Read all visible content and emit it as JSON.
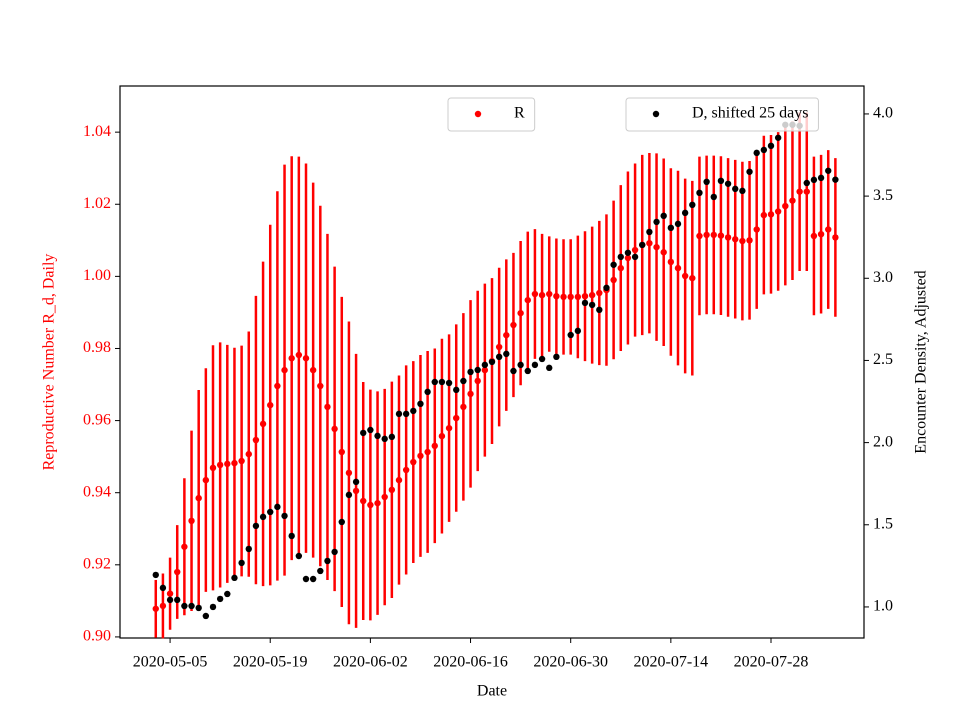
{
  "chart_data": {
    "type": "scatter",
    "x_label": "Date",
    "y_label": "Reproductive Number R_d, Daily",
    "y2_label": "Encounter Density, Adjusted",
    "x": [
      "2020-05-03",
      "2020-05-04",
      "2020-05-05",
      "2020-05-06",
      "2020-05-07",
      "2020-05-08",
      "2020-05-09",
      "2020-05-10",
      "2020-05-11",
      "2020-05-12",
      "2020-05-13",
      "2020-05-14",
      "2020-05-15",
      "2020-05-16",
      "2020-05-17",
      "2020-05-18",
      "2020-05-19",
      "2020-05-20",
      "2020-05-21",
      "2020-05-22",
      "2020-05-23",
      "2020-05-24",
      "2020-05-25",
      "2020-05-26",
      "2020-05-27",
      "2020-05-28",
      "2020-05-29",
      "2020-05-30",
      "2020-05-31",
      "2020-06-01",
      "2020-06-02",
      "2020-06-03",
      "2020-06-04",
      "2020-06-05",
      "2020-06-06",
      "2020-06-07",
      "2020-06-08",
      "2020-06-09",
      "2020-06-10",
      "2020-06-11",
      "2020-06-12",
      "2020-06-13",
      "2020-06-14",
      "2020-06-15",
      "2020-06-16",
      "2020-06-17",
      "2020-06-18",
      "2020-06-19",
      "2020-06-20",
      "2020-06-21",
      "2020-06-22",
      "2020-06-23",
      "2020-06-24",
      "2020-06-25",
      "2020-06-26",
      "2020-06-27",
      "2020-06-28",
      "2020-06-29",
      "2020-06-30",
      "2020-07-01",
      "2020-07-02",
      "2020-07-03",
      "2020-07-04",
      "2020-07-05",
      "2020-07-06",
      "2020-07-07",
      "2020-07-08",
      "2020-07-09",
      "2020-07-10",
      "2020-07-11",
      "2020-07-12",
      "2020-07-13",
      "2020-07-14",
      "2020-07-15",
      "2020-07-16",
      "2020-07-17",
      "2020-07-18",
      "2020-07-19",
      "2020-07-20",
      "2020-07-21",
      "2020-07-22",
      "2020-07-23",
      "2020-07-24",
      "2020-07-25",
      "2020-07-26",
      "2020-07-27",
      "2020-07-28",
      "2020-07-29",
      "2020-07-30",
      "2020-07-31",
      "2020-08-01",
      "2020-08-02",
      "2020-08-03",
      "2020-08-04",
      "2020-08-05",
      "2020-08-06"
    ],
    "series": [
      {
        "name": "R",
        "color": "#ff0000",
        "axis": "y",
        "legend": "upper center",
        "values": [
          0.9078,
          0.9086,
          0.912,
          0.918,
          0.925,
          0.9322,
          0.9385,
          0.9435,
          0.9469,
          0.9477,
          0.948,
          0.9482,
          0.9488,
          0.9507,
          0.9546,
          0.9591,
          0.9643,
          0.9696,
          0.974,
          0.9773,
          0.9782,
          0.9773,
          0.974,
          0.9696,
          0.9638,
          0.9577,
          0.9513,
          0.9455,
          0.9405,
          0.9377,
          0.9366,
          0.9371,
          0.9388,
          0.9408,
          0.9435,
          0.9463,
          0.9485,
          0.9502,
          0.9513,
          0.953,
          0.9557,
          0.9579,
          0.9607,
          0.9638,
          0.9674,
          0.971,
          0.974,
          0.9765,
          0.9804,
          0.9837,
          0.9865,
          0.9898,
          0.9934,
          0.9951,
          0.9948,
          0.9951,
          0.9945,
          0.9943,
          0.9943,
          0.9943,
          0.9945,
          0.9948,
          0.9954,
          0.9962,
          0.999,
          1.0023,
          1.0051,
          1.0073,
          1.0087,
          1.0092,
          1.0081,
          1.0067,
          1.004,
          1.0023,
          1.0001,
          0.9995,
          1.0112,
          1.0115,
          1.0115,
          1.0113,
          1.0108,
          1.0103,
          1.0098,
          1.01,
          1.013,
          1.017,
          1.0172,
          1.018,
          1.0195,
          1.021,
          1.0235,
          1.0235,
          1.0112,
          1.0117,
          1.013,
          1.0108
        ],
        "errors": [
          0.008,
          0.009,
          0.01,
          0.013,
          0.019,
          0.025,
          0.03,
          0.031,
          0.034,
          0.034,
          0.033,
          0.032,
          0.032,
          0.034,
          0.04,
          0.045,
          0.05,
          0.054,
          0.057,
          0.056,
          0.055,
          0.054,
          0.052,
          0.05,
          0.048,
          0.045,
          0.043,
          0.042,
          0.038,
          0.033,
          0.032,
          0.031,
          0.03,
          0.03,
          0.029,
          0.029,
          0.028,
          0.028,
          0.028,
          0.027,
          0.027,
          0.026,
          0.026,
          0.026,
          0.026,
          0.025,
          0.024,
          0.023,
          0.022,
          0.021,
          0.02,
          0.02,
          0.019,
          0.018,
          0.017,
          0.016,
          0.016,
          0.016,
          0.016,
          0.017,
          0.018,
          0.019,
          0.02,
          0.021,
          0.022,
          0.023,
          0.024,
          0.024,
          0.025,
          0.025,
          0.026,
          0.026,
          0.026,
          0.027,
          0.027,
          0.027,
          0.022,
          0.022,
          0.022,
          0.022,
          0.022,
          0.022,
          0.022,
          0.022,
          0.022,
          0.022,
          0.022,
          0.022,
          0.022,
          0.022,
          0.022,
          0.022,
          0.022,
          0.022,
          0.022,
          0.022
        ]
      },
      {
        "name": "D, shifted 25 days",
        "color": "#000000",
        "axis": "y2",
        "legend": "upper right",
        "values": [
          1.195,
          1.116,
          1.043,
          1.043,
          1.006,
          1.006,
          0.994,
          0.945,
          1.0,
          1.049,
          1.079,
          1.177,
          1.268,
          1.353,
          1.493,
          1.548,
          1.578,
          1.609,
          1.554,
          1.432,
          1.31,
          1.17,
          1.17,
          1.219,
          1.28,
          1.335,
          1.517,
          1.682,
          1.761,
          2.059,
          2.077,
          2.041,
          2.023,
          2.035,
          2.175,
          2.175,
          2.193,
          2.236,
          2.309,
          2.369,
          2.369,
          2.363,
          2.321,
          2.375,
          2.43,
          2.442,
          2.473,
          2.491,
          2.522,
          2.54,
          2.436,
          2.473,
          2.436,
          2.473,
          2.509,
          2.455,
          2.522,
          null,
          2.655,
          2.68,
          2.85,
          2.838,
          2.808,
          2.942,
          3.082,
          3.13,
          3.155,
          3.13,
          3.203,
          3.282,
          3.343,
          3.38,
          3.307,
          3.331,
          3.398,
          3.447,
          3.52,
          3.587,
          3.495,
          3.593,
          3.575,
          3.544,
          3.532,
          3.648,
          3.763,
          3.781,
          3.806,
          3.855,
          3.934,
          3.934,
          3.928,
          3.58,
          3.599,
          3.611,
          3.654,
          3.6
        ]
      }
    ],
    "xlim": [
      "2020-04-28",
      "2020-08-10"
    ],
    "xticks": [
      "2020-05-05",
      "2020-05-19",
      "2020-06-02",
      "2020-06-16",
      "2020-06-30",
      "2020-07-14",
      "2020-07-28"
    ],
    "ylim": [
      0.8997,
      1.0528
    ],
    "yticks": [
      {
        "value": 0.9,
        "label": "0.90"
      },
      0.92,
      0.94,
      0.96,
      0.98,
      {
        "value": 1.0,
        "label": "1.00"
      },
      1.02,
      1.04
    ],
    "y2lim": [
      0.811,
      4.17
    ],
    "y2ticks": [
      {
        "value": 1.0,
        "label": "1.0"
      },
      1.5,
      {
        "value": 2.0,
        "label": "2.0"
      },
      2.5,
      {
        "value": 3.0,
        "label": "3.0"
      },
      3.5,
      {
        "value": 4.0,
        "label": "4.0"
      }
    ],
    "grid": false
  }
}
